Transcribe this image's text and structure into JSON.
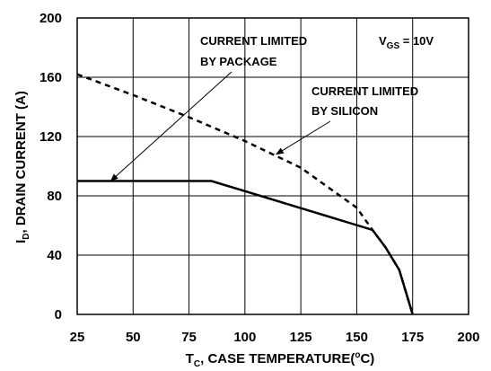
{
  "chart_data": {
    "type": "line",
    "xlabel": {
      "main": "T",
      "sub": "C",
      "rest": ", CASE TEMPERATURE(",
      "sup": "o",
      "end": "C)"
    },
    "ylabel": {
      "main": "I",
      "sub": "D",
      "rest": ", DRAIN CURRENT (A)"
    },
    "xlim": [
      25,
      200
    ],
    "ylim": [
      0,
      200
    ],
    "x_ticks": [
      25,
      50,
      75,
      100,
      125,
      150,
      175,
      200
    ],
    "y_ticks": [
      0,
      40,
      80,
      120,
      160,
      200
    ],
    "grid": true,
    "series": [
      {
        "style": "solid",
        "points": [
          [
            25,
            90
          ],
          [
            85,
            90
          ],
          [
            157,
            57
          ],
          [
            163,
            45
          ],
          [
            169,
            30
          ],
          [
            175,
            0
          ]
        ]
      },
      {
        "style": "dashed",
        "points": [
          [
            25,
            162
          ],
          [
            50,
            148
          ],
          [
            75,
            133
          ],
          [
            100,
            117
          ],
          [
            125,
            99
          ],
          [
            150,
            72
          ],
          [
            157,
            57
          ],
          [
            163,
            45
          ],
          [
            169,
            30
          ],
          [
            175,
            0
          ]
        ]
      }
    ],
    "annotations": [
      {
        "id": "package",
        "lines": [
          "CURRENT LIMITED",
          "BY PACKAGE"
        ],
        "arrow_to": [
          40,
          90
        ]
      },
      {
        "id": "silicon",
        "lines": [
          "CURRENT LIMITED",
          "BY SILICON"
        ],
        "arrow_to": [
          114,
          108
        ]
      },
      {
        "id": "vgs",
        "main": "V",
        "sub": "GS",
        "rest": " = 10V"
      }
    ]
  }
}
